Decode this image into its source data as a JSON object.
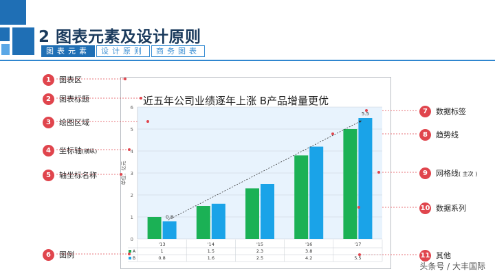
{
  "header": {
    "title": "2 图表元素及设计原则",
    "tabs": [
      {
        "label": "图表元素",
        "active": true
      },
      {
        "label": "设计原则",
        "active": false
      },
      {
        "label": "商务图表",
        "active": false
      }
    ]
  },
  "callouts": [
    {
      "num": "1",
      "label": "图表区"
    },
    {
      "num": "2",
      "label": "图表标题"
    },
    {
      "num": "3",
      "label": "绘图区域"
    },
    {
      "num": "4",
      "label": "坐标轴",
      "sub": "(横纵)"
    },
    {
      "num": "5",
      "label": "轴坐标名称"
    },
    {
      "num": "6",
      "label": "图例"
    },
    {
      "num": "7",
      "label": "数据标签"
    },
    {
      "num": "8",
      "label": "趋势线"
    },
    {
      "num": "9",
      "label": "网格线",
      "sub": "( 主次 )"
    },
    {
      "num": "10",
      "label": "数据系列"
    },
    {
      "num": "11",
      "label": "其他"
    }
  ],
  "colors": {
    "brand": "#1f6fb5",
    "accent": "#2f86cf",
    "callout": "#e0454d",
    "seriesA": "#1bb155",
    "seriesB": "#1aa3e8",
    "plotBg": "#e8f3fd"
  },
  "chart_data": {
    "type": "bar",
    "title": "近五年公司业绩逐年上涨  B产品增量更优",
    "ylabel": "单位：亿元",
    "xlabel": "",
    "ylim": [
      0,
      6
    ],
    "yticks": [
      0,
      1,
      2,
      3,
      4,
      5,
      6
    ],
    "categories": [
      "'13",
      "'14",
      "'15",
      "'16",
      "'17"
    ],
    "series": [
      {
        "name": "A",
        "values": [
          1,
          1.5,
          2.3,
          3.8,
          5
        ]
      },
      {
        "name": "B",
        "values": [
          0.8,
          1.6,
          2.5,
          4.2,
          5.5
        ]
      }
    ],
    "table_rows": [
      {
        "name": "A",
        "cells": [
          "1",
          "1.5",
          "2.3",
          "3.8",
          ""
        ]
      },
      {
        "name": "B",
        "cells": [
          "0.8",
          "1.6",
          "2.5",
          "4.2",
          "5.5"
        ]
      }
    ],
    "data_labels": [
      {
        "series": "B",
        "index": 0,
        "text": "0.8"
      },
      {
        "series": "B",
        "index": 4,
        "text": "5.5"
      }
    ],
    "trendline": true,
    "grid": "horizontal",
    "legend": "data-table"
  },
  "watermark": "头条号 / 大丰国际"
}
